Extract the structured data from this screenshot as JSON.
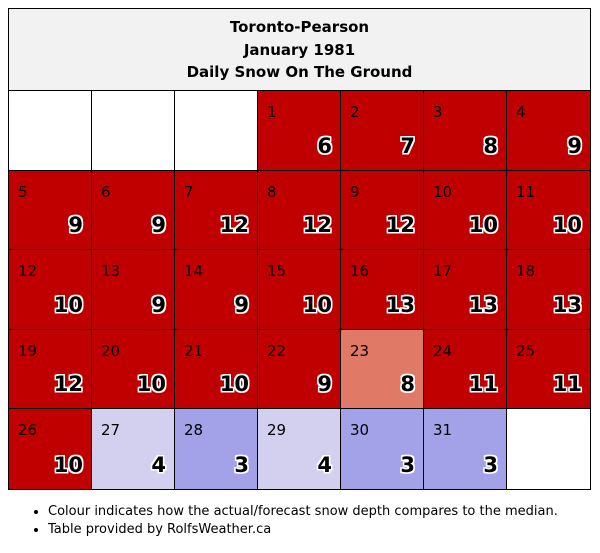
{
  "header": {
    "line1": "Toronto-Pearson",
    "line2": "January 1981",
    "line3": "Daily Snow On The Ground"
  },
  "colors": {
    "empty": "#ffffff",
    "well_above": "#c00000",
    "above": "#e07a66",
    "slightly_below": "#d2d0ee",
    "below": "#a3a1e8"
  },
  "calendar": {
    "leading_blanks": 3,
    "days": [
      {
        "day": "1",
        "value": "6",
        "level": "well_above"
      },
      {
        "day": "2",
        "value": "7",
        "level": "well_above"
      },
      {
        "day": "3",
        "value": "8",
        "level": "well_above"
      },
      {
        "day": "4",
        "value": "9",
        "level": "well_above"
      },
      {
        "day": "5",
        "value": "9",
        "level": "well_above"
      },
      {
        "day": "6",
        "value": "9",
        "level": "well_above"
      },
      {
        "day": "7",
        "value": "12",
        "level": "well_above"
      },
      {
        "day": "8",
        "value": "12",
        "level": "well_above"
      },
      {
        "day": "9",
        "value": "12",
        "level": "well_above"
      },
      {
        "day": "10",
        "value": "10",
        "level": "well_above"
      },
      {
        "day": "11",
        "value": "10",
        "level": "well_above"
      },
      {
        "day": "12",
        "value": "10",
        "level": "well_above"
      },
      {
        "day": "13",
        "value": "9",
        "level": "well_above"
      },
      {
        "day": "14",
        "value": "9",
        "level": "well_above"
      },
      {
        "day": "15",
        "value": "10",
        "level": "well_above"
      },
      {
        "day": "16",
        "value": "13",
        "level": "well_above"
      },
      {
        "day": "17",
        "value": "13",
        "level": "well_above"
      },
      {
        "day": "18",
        "value": "13",
        "level": "well_above"
      },
      {
        "day": "19",
        "value": "12",
        "level": "well_above"
      },
      {
        "day": "20",
        "value": "10",
        "level": "well_above"
      },
      {
        "day": "21",
        "value": "10",
        "level": "well_above"
      },
      {
        "day": "22",
        "value": "9",
        "level": "well_above"
      },
      {
        "day": "23",
        "value": "8",
        "level": "above"
      },
      {
        "day": "24",
        "value": "11",
        "level": "well_above"
      },
      {
        "day": "25",
        "value": "11",
        "level": "well_above"
      },
      {
        "day": "26",
        "value": "10",
        "level": "well_above"
      },
      {
        "day": "27",
        "value": "4",
        "level": "slightly_below"
      },
      {
        "day": "28",
        "value": "3",
        "level": "below"
      },
      {
        "day": "29",
        "value": "4",
        "level": "slightly_below"
      },
      {
        "day": "30",
        "value": "3",
        "level": "below"
      },
      {
        "day": "31",
        "value": "3",
        "level": "below"
      }
    ]
  },
  "notes": [
    "Colour indicates how the actual/forecast snow depth compares to the median.",
    "Table provided by RolfsWeather.ca"
  ]
}
